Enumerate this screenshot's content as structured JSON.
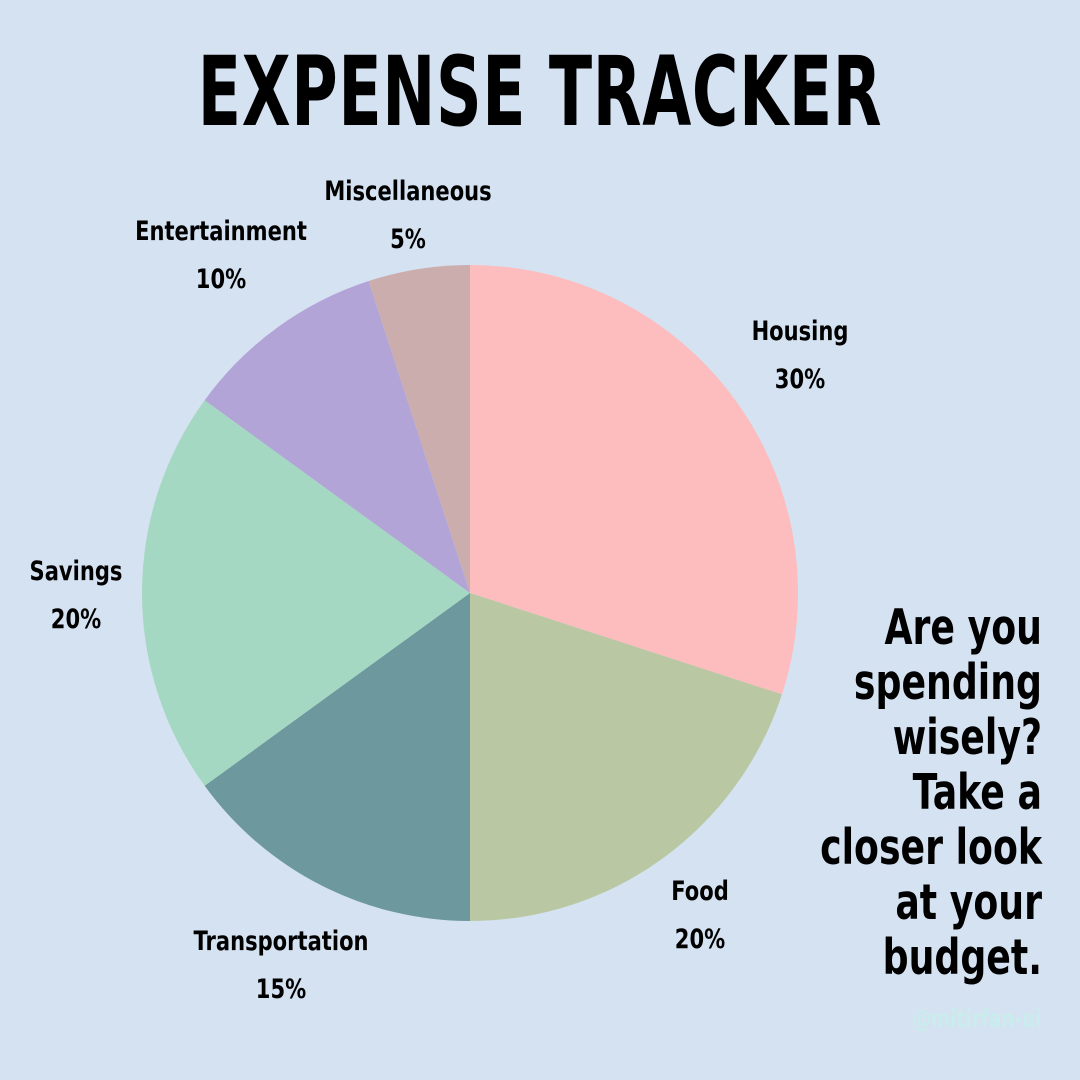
{
  "page": {
    "title": "EXPENSE TRACKER",
    "tagline": "Are you\nspending\nwisely?\nTake a\ncloser look\nat your\nbudget.",
    "watermark": "@mitirfan-ui",
    "background_color": "#d5e2f1"
  },
  "chart_data": {
    "type": "pie",
    "title": "EXPENSE TRACKER",
    "start": "12 o'clock",
    "direction": "clockwise",
    "slices": [
      {
        "label": "Housing",
        "value": 30,
        "value_label": "30%",
        "color": "#fdbcbd"
      },
      {
        "label": "Food",
        "value": 20,
        "value_label": "20%",
        "color": "#b9c8a2"
      },
      {
        "label": "Transportation",
        "value": 15,
        "value_label": "15%",
        "color": "#6d989d"
      },
      {
        "label": "Savings",
        "value": 20,
        "value_label": "20%",
        "color": "#a5d8c2"
      },
      {
        "label": "Entertainment",
        "value": 10,
        "value_label": "10%",
        "color": "#b2a4d7"
      },
      {
        "label": "Miscellaneous",
        "value": 5,
        "value_label": "5%",
        "color": "#ccadad"
      }
    ]
  }
}
